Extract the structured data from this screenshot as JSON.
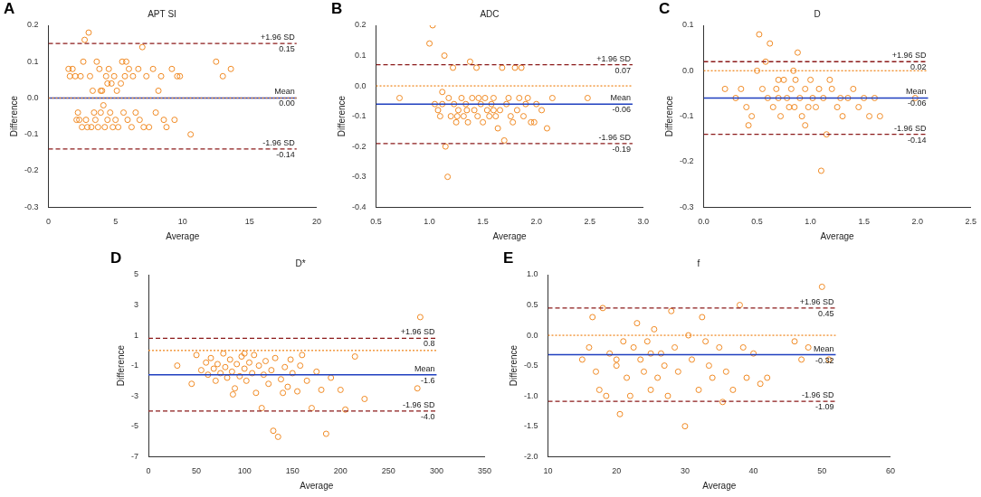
{
  "chart_data": [
    {
      "type": "scatter",
      "panel_label": "A",
      "title": "APT SI",
      "x_label": "Average",
      "y_label": "Difference",
      "xlim": [
        0,
        20
      ],
      "xticks": [
        0,
        5,
        10,
        15,
        20
      ],
      "ylim": [
        -0.3,
        0.2
      ],
      "yticks": [
        -0.3,
        -0.2,
        -0.1,
        {
          "value": 0,
          "label": "0.0"
        },
        0.1,
        0.2
      ],
      "grid": false,
      "marker": "circle",
      "color": "#f08a24",
      "x": [
        1.5,
        1.6,
        1.8,
        2.0,
        2.1,
        2.2,
        2.4,
        2.5,
        2.6,
        2.7,
        2.8,
        2.9,
        3.0,
        3.1,
        3.2,
        3.3,
        3.4,
        3.5,
        3.6,
        3.7,
        3.8,
        3.9,
        4.0,
        4.1,
        4.2,
        4.3,
        4.4,
        4.5,
        4.6,
        4.7,
        4.8,
        4.9,
        5.0,
        5.1,
        5.2,
        5.4,
        5.5,
        5.6,
        5.8,
        5.9,
        6.0,
        6.2,
        6.3,
        6.5,
        6.7,
        6.8,
        7.0,
        7.1,
        7.3,
        7.5,
        7.8,
        8.0,
        8.2,
        8.4,
        8.6,
        8.8,
        9.2,
        9.4,
        9.6,
        9.8,
        10.6,
        12.5,
        13.0,
        13.6,
        3.9,
        5.7,
        2.3,
        4.4
      ],
      "values": [
        0.08,
        0.06,
        0.08,
        0.06,
        -0.06,
        -0.04,
        0.06,
        -0.08,
        0.1,
        0.16,
        -0.06,
        -0.08,
        0.18,
        0.06,
        -0.08,
        0.02,
        -0.04,
        -0.06,
        0.1,
        -0.08,
        0.08,
        -0.04,
        0.02,
        -0.02,
        -0.08,
        0.06,
        -0.06,
        0.08,
        -0.04,
        0.04,
        -0.08,
        0.06,
        -0.06,
        0.02,
        -0.08,
        0.04,
        0.1,
        -0.04,
        0.1,
        -0.06,
        0.08,
        -0.08,
        0.06,
        -0.04,
        0.08,
        -0.06,
        0.14,
        -0.08,
        0.06,
        -0.08,
        0.08,
        -0.04,
        0.02,
        0.06,
        -0.06,
        -0.08,
        0.08,
        -0.06,
        0.06,
        0.06,
        -0.1,
        0.1,
        0.06,
        0.08,
        0.02,
        0.06,
        -0.06,
        0.04
      ],
      "line_extent": [
        0,
        18.5
      ],
      "reference_lines": [
        {
          "value": 0,
          "color": "#f08a24",
          "line_style": "dotted"
        },
        {
          "name": "+1.96 SD",
          "value": 0.15,
          "color": "#8b1a1a",
          "line_style": "dashed"
        },
        {
          "name": "Mean",
          "value": 0,
          "value_label": "0.00",
          "color": "#1f3fbf",
          "line_style": "solid"
        },
        {
          "name": "-1.96 SD",
          "value": -0.14,
          "color": "#8b1a1a",
          "line_style": "dashed"
        }
      ]
    },
    {
      "type": "scatter",
      "panel_label": "B",
      "title": "ADC",
      "x_label": "Average",
      "y_label": "Difference",
      "xlim": [
        0.5,
        3.0
      ],
      "xticks": [
        0.5,
        {
          "value": 1,
          "label": "1.0"
        },
        1.5,
        {
          "value": 2,
          "label": "2.0"
        },
        2.5,
        {
          "value": 3,
          "label": "3.0"
        }
      ],
      "ylim": [
        -0.4,
        0.2
      ],
      "yticks": [
        -0.4,
        -0.3,
        -0.2,
        -0.1,
        {
          "value": 0,
          "label": "0.0"
        },
        0.1,
        0.2
      ],
      "grid": false,
      "marker": "circle",
      "color": "#f08a24",
      "x": [
        0.72,
        1.0,
        1.03,
        1.05,
        1.08,
        1.1,
        1.12,
        1.14,
        1.15,
        1.17,
        1.18,
        1.2,
        1.22,
        1.23,
        1.25,
        1.27,
        1.3,
        1.32,
        1.34,
        1.36,
        1.38,
        1.4,
        1.42,
        1.44,
        1.45,
        1.48,
        1.5,
        1.52,
        1.54,
        1.56,
        1.58,
        1.6,
        1.62,
        1.64,
        1.66,
        1.68,
        1.7,
        1.72,
        1.74,
        1.76,
        1.78,
        1.8,
        1.82,
        1.84,
        1.86,
        1.88,
        1.9,
        1.92,
        1.95,
        1.98,
        2.0,
        2.05,
        2.1,
        2.15,
        2.48,
        1.26,
        1.46,
        1.35,
        1.6,
        1.12
      ],
      "values": [
        -0.04,
        0.14,
        0.2,
        -0.06,
        -0.08,
        -0.1,
        -0.02,
        0.1,
        -0.2,
        -0.3,
        -0.04,
        -0.1,
        0.06,
        -0.06,
        -0.12,
        -0.08,
        -0.04,
        -0.1,
        -0.06,
        -0.12,
        0.08,
        -0.04,
        -0.08,
        0.06,
        -0.1,
        -0.06,
        -0.12,
        -0.04,
        -0.08,
        -0.1,
        -0.06,
        -0.04,
        -0.1,
        -0.14,
        -0.08,
        0.06,
        -0.18,
        -0.06,
        -0.04,
        -0.1,
        -0.12,
        0.06,
        -0.08,
        -0.04,
        0.06,
        -0.1,
        -0.06,
        -0.04,
        -0.12,
        -0.12,
        -0.06,
        -0.08,
        -0.14,
        -0.04,
        -0.04,
        -0.1,
        -0.04,
        -0.08,
        -0.08,
        -0.06
      ],
      "line_extent": [
        0.5,
        2.9
      ],
      "reference_lines": [
        {
          "value": 0,
          "color": "#f08a24",
          "line_style": "dotted"
        },
        {
          "name": "+1.96 SD",
          "value": 0.07,
          "color": "#8b1a1a",
          "line_style": "dashed"
        },
        {
          "name": "Mean",
          "value": -0.06,
          "color": "#1f3fbf",
          "line_style": "solid"
        },
        {
          "name": "-1.96 SD",
          "value": -0.19,
          "color": "#8b1a1a",
          "line_style": "dashed"
        }
      ]
    },
    {
      "type": "scatter",
      "panel_label": "C",
      "title": "D",
      "x_label": "Average",
      "y_label": "Difference",
      "xlim": [
        0,
        2.5
      ],
      "xticks": [
        {
          "value": 0,
          "label": "0.0"
        },
        0.5,
        {
          "value": 1,
          "label": "1.0"
        },
        1.5,
        {
          "value": 2,
          "label": "2.0"
        },
        2.5
      ],
      "ylim": [
        -0.3,
        0.1
      ],
      "yticks": [
        -0.3,
        -0.2,
        -0.1,
        {
          "value": 0,
          "label": "0.0"
        },
        0.1
      ],
      "grid": false,
      "marker": "circle",
      "color": "#f08a24",
      "x": [
        0.2,
        0.3,
        0.35,
        0.4,
        0.42,
        0.45,
        0.5,
        0.52,
        0.55,
        0.58,
        0.6,
        0.62,
        0.65,
        0.68,
        0.7,
        0.72,
        0.75,
        0.78,
        0.8,
        0.82,
        0.84,
        0.86,
        0.88,
        0.9,
        0.92,
        0.95,
        0.98,
        1.0,
        1.02,
        1.05,
        1.08,
        1.1,
        1.12,
        1.15,
        1.18,
        1.2,
        1.25,
        1.28,
        1.3,
        1.35,
        1.4,
        1.45,
        1.5,
        1.55,
        1.6,
        1.65,
        1.98,
        0.85,
        0.7,
        0.95
      ],
      "values": [
        -0.04,
        -0.06,
        -0.04,
        -0.08,
        -0.12,
        -0.1,
        0.0,
        0.08,
        -0.04,
        0.02,
        -0.06,
        0.06,
        -0.08,
        -0.04,
        -0.06,
        -0.1,
        -0.02,
        -0.06,
        -0.08,
        -0.04,
        0.0,
        -0.02,
        0.04,
        -0.06,
        -0.1,
        -0.04,
        -0.08,
        -0.02,
        -0.06,
        -0.08,
        -0.04,
        -0.22,
        -0.06,
        -0.14,
        -0.02,
        -0.04,
        -0.08,
        -0.06,
        -0.1,
        -0.06,
        -0.04,
        -0.08,
        -0.06,
        -0.1,
        -0.06,
        -0.1,
        -0.06,
        -0.08,
        -0.02,
        -0.12
      ],
      "line_extent": [
        0,
        2.1
      ],
      "reference_lines": [
        {
          "value": 0,
          "color": "#f08a24",
          "line_style": "dotted"
        },
        {
          "name": "+1.96 SD",
          "value": 0.02,
          "color": "#8b1a1a",
          "line_style": "dashed"
        },
        {
          "name": "Mean",
          "value": -0.06,
          "color": "#1f3fbf",
          "line_style": "solid"
        },
        {
          "name": "-1.96 SD",
          "value": -0.14,
          "color": "#8b1a1a",
          "line_style": "dashed"
        }
      ]
    },
    {
      "type": "scatter",
      "panel_label": "D",
      "title": "D*",
      "x_label": "Average",
      "y_label": "Difference",
      "xlim": [
        0,
        350
      ],
      "xticks": [
        0,
        50,
        100,
        150,
        200,
        250,
        300,
        350
      ],
      "ylim": [
        -7,
        5
      ],
      "yticks": [
        -7,
        -5,
        -3,
        -1,
        1,
        3,
        5
      ],
      "grid": false,
      "marker": "circle",
      "color": "#f08a24",
      "x": [
        30,
        45,
        50,
        55,
        60,
        62,
        65,
        68,
        70,
        72,
        75,
        78,
        80,
        82,
        85,
        87,
        90,
        92,
        95,
        97,
        100,
        102,
        105,
        108,
        110,
        112,
        115,
        118,
        120,
        122,
        125,
        128,
        130,
        132,
        135,
        138,
        140,
        142,
        145,
        148,
        150,
        155,
        158,
        160,
        165,
        170,
        175,
        180,
        185,
        190,
        200,
        205,
        215,
        225,
        280,
        283,
        100,
        88
      ],
      "values": [
        -1.0,
        -2.2,
        -0.3,
        -1.3,
        -0.8,
        -1.6,
        -0.5,
        -1.2,
        -2.0,
        -0.9,
        -1.5,
        -0.2,
        -1.1,
        -1.8,
        -0.6,
        -1.4,
        -2.5,
        -0.9,
        -1.7,
        -0.4,
        -1.2,
        -2.0,
        -0.8,
        -1.5,
        -0.3,
        -2.8,
        -1.0,
        -3.8,
        -1.6,
        -0.7,
        -2.2,
        -1.3,
        -5.3,
        -0.5,
        -5.7,
        -1.9,
        -2.8,
        -1.1,
        -2.4,
        -0.6,
        -1.5,
        -2.7,
        -1.0,
        -0.3,
        -2.0,
        -3.8,
        -1.4,
        -2.6,
        -5.5,
        -1.8,
        -2.6,
        -3.9,
        -0.4,
        -3.2,
        -2.5,
        2.2,
        -0.2,
        -2.9
      ],
      "line_extent": [
        0,
        300
      ],
      "reference_lines": [
        {
          "value": 0,
          "color": "#f08a24",
          "line_style": "dotted"
        },
        {
          "name": "+1.96 SD",
          "value": 0.8,
          "color": "#8b1a1a",
          "line_style": "dashed"
        },
        {
          "name": "Mean",
          "value": -1.6,
          "color": "#1f3fbf",
          "line_style": "solid"
        },
        {
          "name": "-1.96 SD",
          "value": -4,
          "value_label": "-4.0",
          "color": "#8b1a1a",
          "line_style": "dashed"
        }
      ]
    },
    {
      "type": "scatter",
      "panel_label": "E",
      "title": "f",
      "x_label": "Average",
      "y_label": "Difference",
      "xlim": [
        10,
        60
      ],
      "xticks": [
        10,
        20,
        30,
        40,
        50,
        60
      ],
      "ylim": [
        -2,
        1
      ],
      "yticks": [
        {
          "value": -2,
          "label": "-2.0"
        },
        -1.5,
        {
          "value": -1,
          "label": "-1.0"
        },
        -0.5,
        {
          "value": 0,
          "label": "0.0"
        },
        0.5,
        {
          "value": 1,
          "label": "1.0"
        }
      ],
      "grid": false,
      "marker": "circle",
      "color": "#f08a24",
      "x": [
        15,
        16,
        16.5,
        17,
        17.5,
        18,
        18.5,
        19,
        20,
        20.5,
        21,
        21.5,
        22,
        22.5,
        23,
        23.5,
        24,
        24.5,
        25,
        25.5,
        26,
        26.5,
        27,
        27.5,
        28,
        28.5,
        29,
        30,
        30.5,
        31,
        32,
        32.5,
        33,
        33.5,
        34,
        35,
        35.5,
        36,
        37,
        38,
        38.5,
        39,
        40,
        41,
        42,
        46,
        47,
        48,
        50,
        51,
        25,
        20
      ],
      "values": [
        -0.4,
        -0.2,
        0.3,
        -0.6,
        -0.9,
        0.45,
        -1.0,
        -0.3,
        -0.5,
        -1.3,
        -0.1,
        -0.7,
        -1.0,
        -0.2,
        0.2,
        -0.4,
        -0.6,
        -0.1,
        -0.3,
        0.1,
        -0.7,
        -0.3,
        -0.5,
        -1.0,
        0.4,
        -0.2,
        -0.6,
        -1.5,
        0.0,
        -0.4,
        -0.9,
        0.3,
        -0.1,
        -0.5,
        -0.7,
        -0.2,
        -1.1,
        -0.6,
        -0.9,
        0.5,
        -0.2,
        -0.7,
        -0.3,
        -0.8,
        -0.7,
        -0.1,
        -0.4,
        -0.2,
        0.8,
        -0.4,
        -0.9,
        -0.4
      ],
      "line_extent": [
        10,
        52
      ],
      "reference_lines": [
        {
          "value": 0,
          "color": "#f08a24",
          "line_style": "dotted"
        },
        {
          "name": "+1.96 SD",
          "value": 0.45,
          "color": "#8b1a1a",
          "line_style": "dashed"
        },
        {
          "name": "Mean",
          "value": -0.32,
          "color": "#1f3fbf",
          "line_style": "solid"
        },
        {
          "name": "-1.96 SD",
          "value": -1.09,
          "color": "#8b1a1a",
          "line_style": "dashed"
        }
      ]
    }
  ]
}
